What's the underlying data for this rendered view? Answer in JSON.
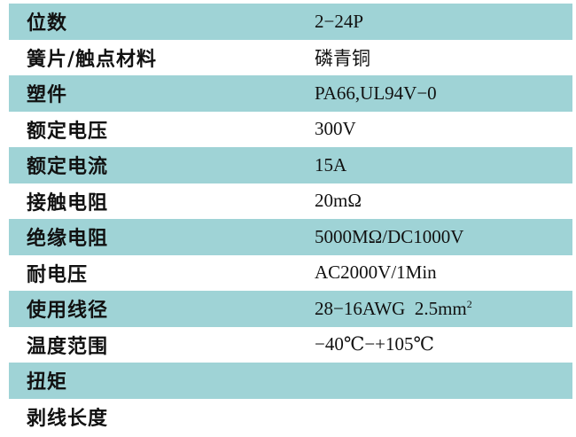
{
  "colors": {
    "shade": "#9fd3d6"
  },
  "rows": [
    {
      "label": "位数",
      "value": "2−24P"
    },
    {
      "label": "簧片/触点材料",
      "value": "磷青铜"
    },
    {
      "label": "塑件",
      "value": "PA66,UL94V−0"
    },
    {
      "label": "额定电压",
      "value": "300V"
    },
    {
      "label": "额定电流",
      "value": "15A"
    },
    {
      "label": "接触电阻",
      "value": "20mΩ"
    },
    {
      "label": "绝缘电阻",
      "value": "5000MΩ/DC1000V"
    },
    {
      "label": "耐电压",
      "value": "AC2000V/1Min"
    },
    {
      "label": "使用线径",
      "value": "28−16AWG  2.5mm",
      "sup": "2"
    },
    {
      "label": "温度范围",
      "value": "−40℃−+105℃"
    },
    {
      "label": "扭矩",
      "value": ""
    },
    {
      "label": "剥线长度",
      "value": ""
    }
  ]
}
